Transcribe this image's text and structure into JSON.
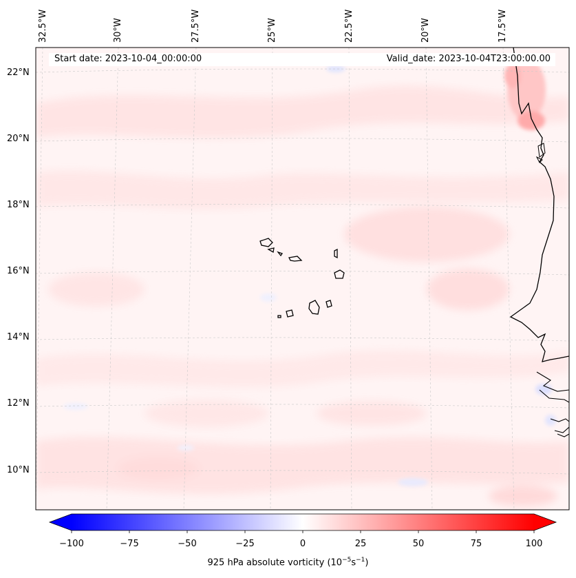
{
  "map": {
    "start_date": "Start date: 2023-10-04_00:00:00",
    "valid_date": "Valid_date: 2023-10-04T23:00:00.00",
    "longitude_labels": [
      "32.5°W",
      "30°W",
      "27.5°W",
      "25°W",
      "22.5°W",
      "20°W",
      "17.5°W"
    ],
    "latitude_labels": [
      "22°N",
      "20°N",
      "18°N",
      "16°N",
      "14°N",
      "12°N",
      "10°N"
    ]
  },
  "colorbar": {
    "label_prefix": "925 hPa absolute vorticity (10",
    "label_exp1": "−5",
    "label_mid": "s",
    "label_exp2": "−1",
    "label_suffix": ")",
    "ticks": [
      "−100",
      "−75",
      "−50",
      "−25",
      "0",
      "25",
      "50",
      "75",
      "100"
    ],
    "min": -100,
    "max": 100,
    "colormap": "bwr",
    "color_low": "#0000ff",
    "color_mid": "#ffffff",
    "color_high": "#ff0000"
  }
}
